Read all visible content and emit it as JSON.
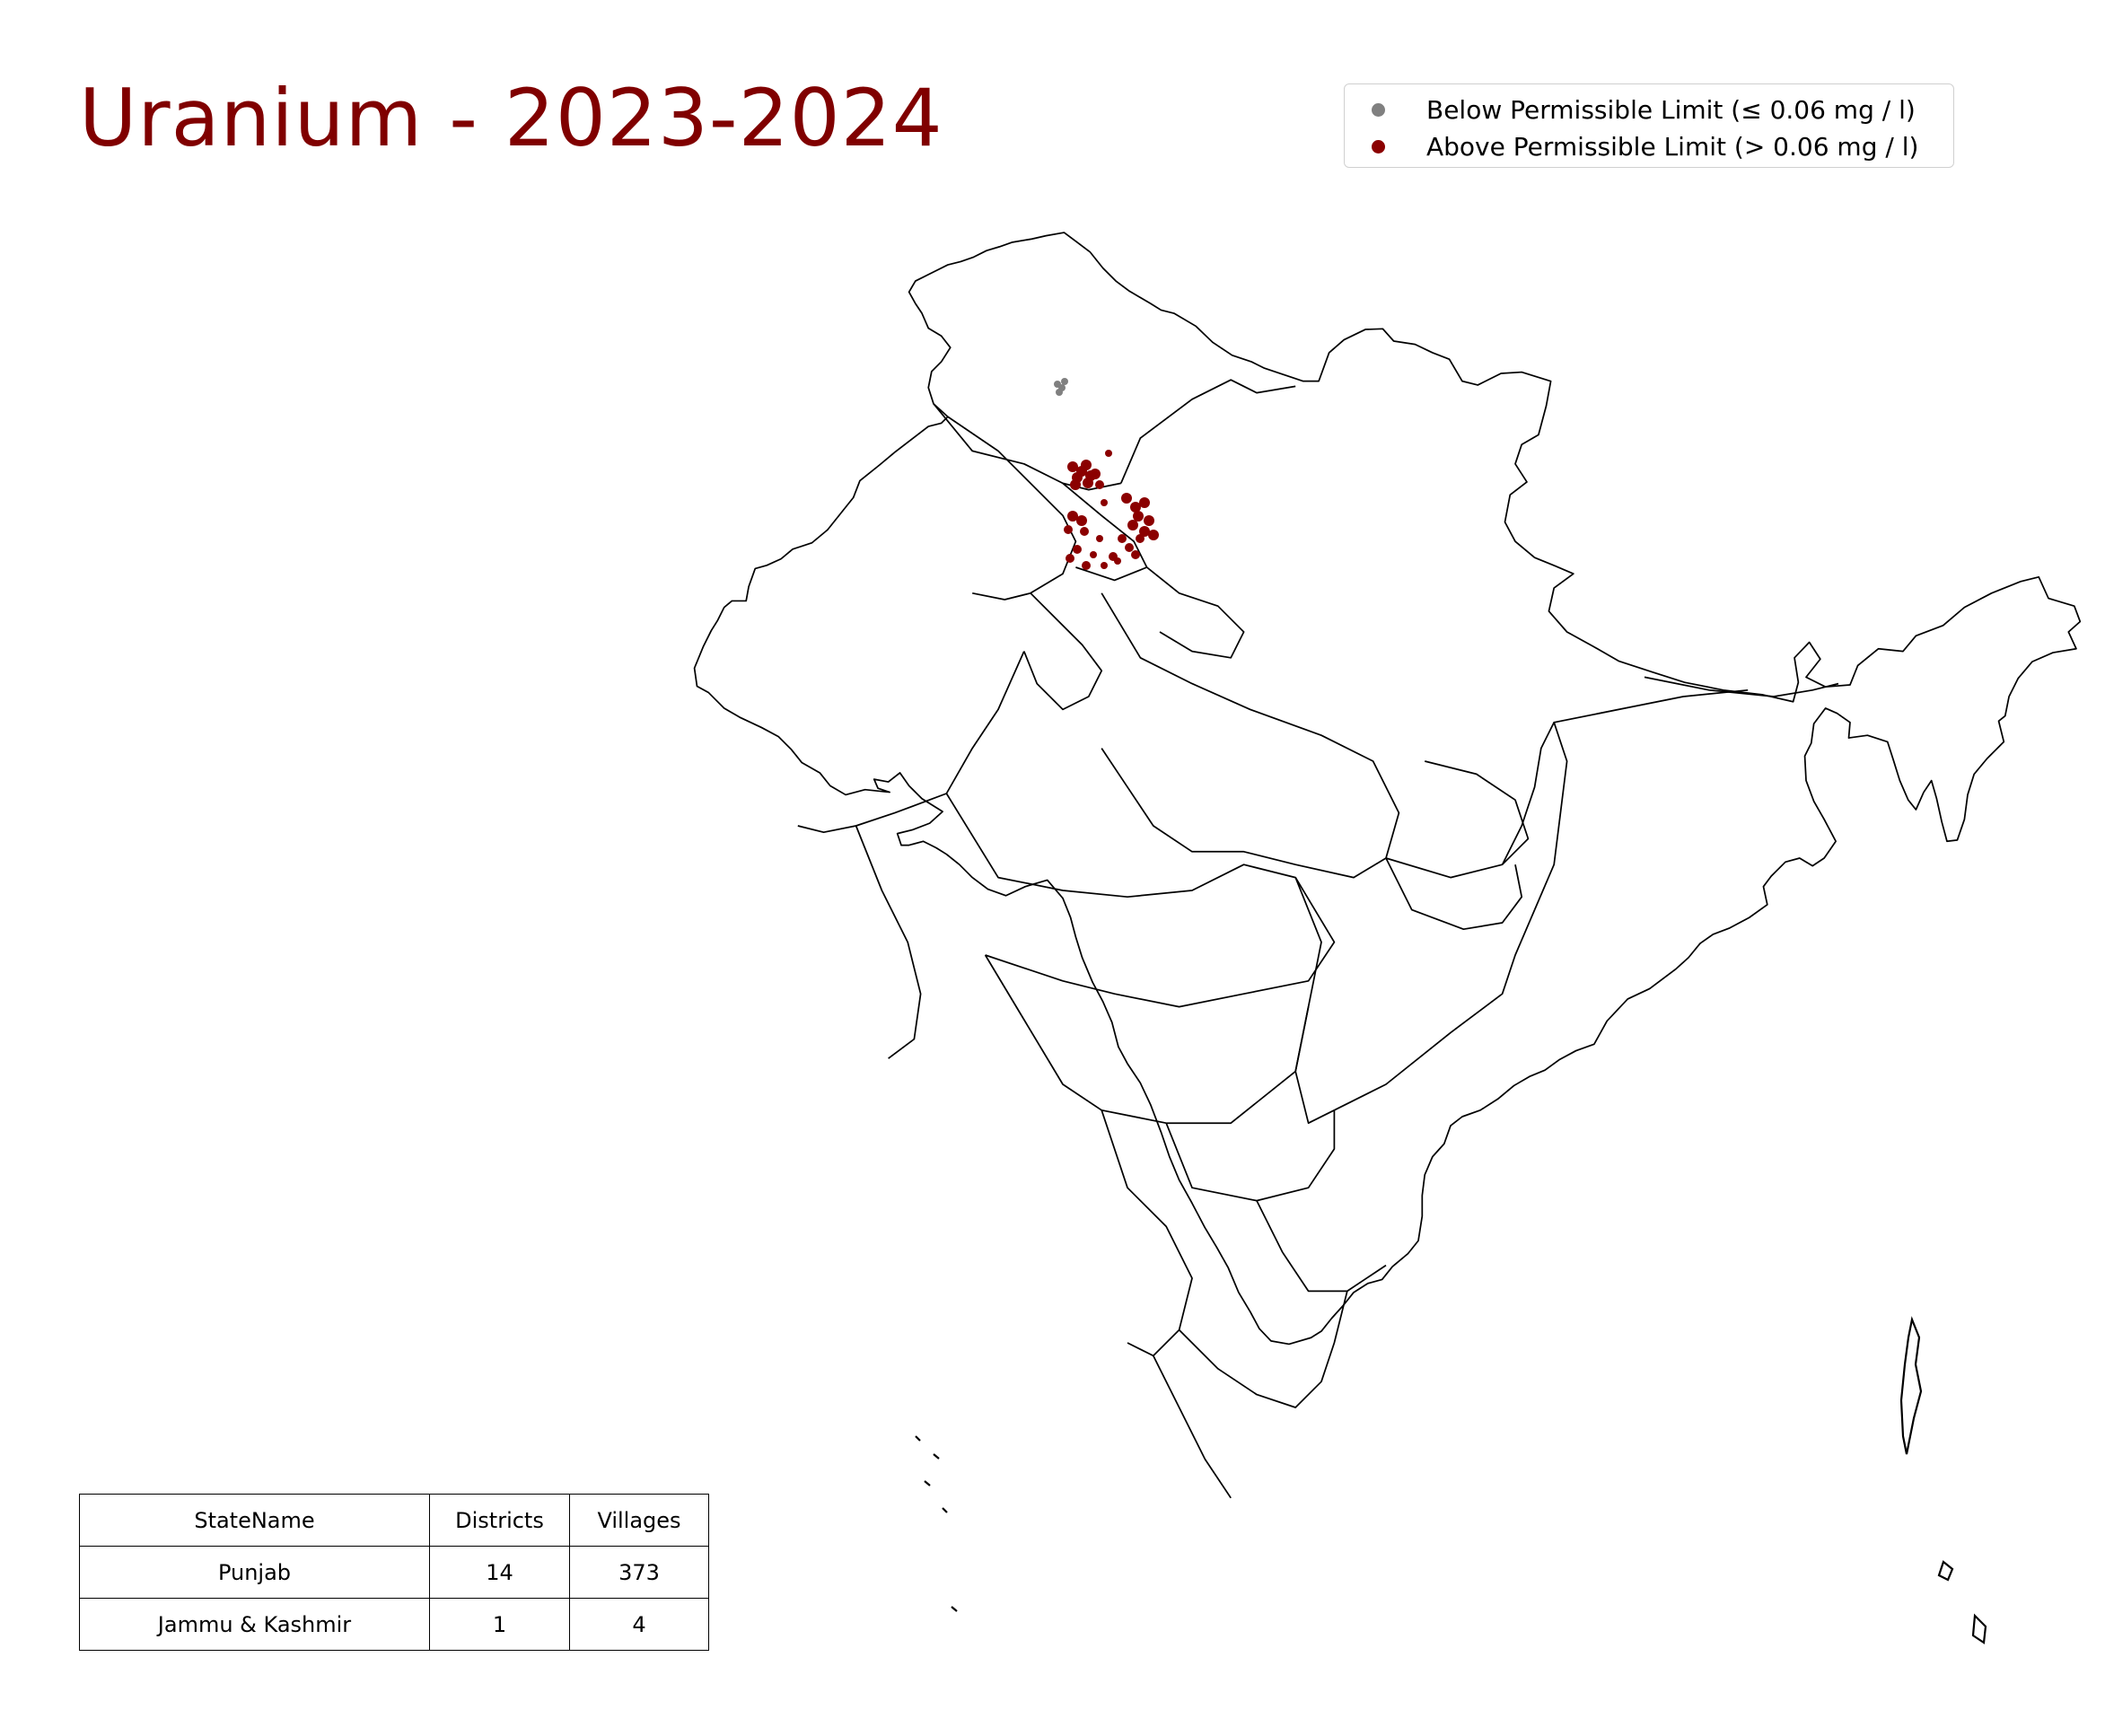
{
  "title": "Uranium - 2023-2024",
  "colors": {
    "title": "#800000",
    "below": "#808080",
    "above": "#8b0000",
    "boundary": "#000000"
  },
  "legend": {
    "placement": "top-right",
    "items": [
      {
        "label": "Below Permissible Limit (≤ 0.06 mg / l)",
        "color": "#808080"
      },
      {
        "label": "Above Permissible Limit (> 0.06 mg / l)",
        "color": "#8b0000"
      }
    ]
  },
  "table": {
    "headers": [
      "StateName",
      "Districts",
      "Villages"
    ],
    "rows": [
      [
        "Punjab",
        "14",
        "373"
      ],
      [
        "Jammu & Kashmir",
        "1",
        "4"
      ]
    ]
  },
  "map": {
    "region": "India",
    "states_with_samples": [
      "Punjab",
      "Jammu & Kashmir"
    ]
  }
}
